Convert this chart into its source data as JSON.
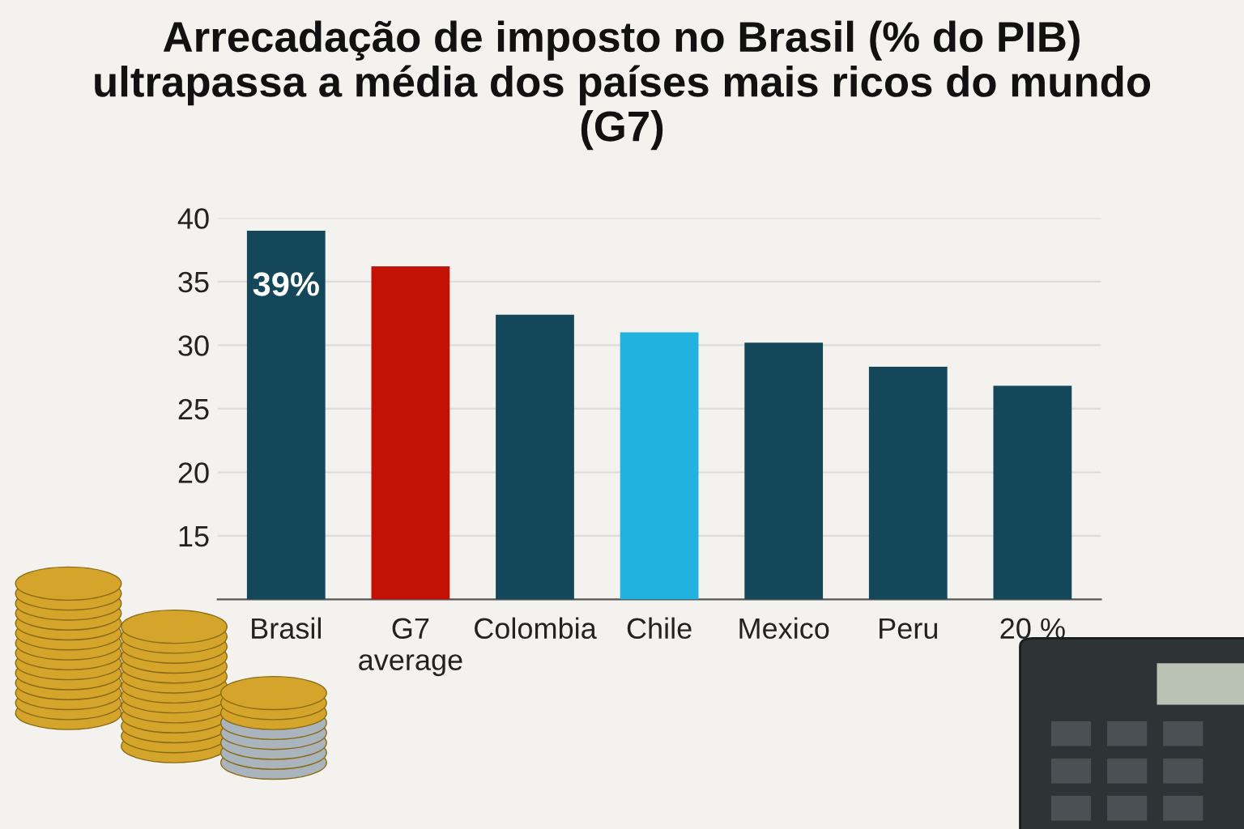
{
  "chart_data": {
    "type": "bar",
    "title": "Arrecadação de imposto no Brasil (% do PIB)\nultrapassa a média dos países mais ricos do mundo\n(G7)",
    "categories": [
      "Brasil",
      "G7\naverage",
      "Colombia",
      "Chile",
      "Mexico",
      "Peru",
      "20 %"
    ],
    "values": [
      39.0,
      36.2,
      32.4,
      31.0,
      30.2,
      28.3,
      26.8
    ],
    "colors": [
      "#14475a",
      "#c31106",
      "#14475a",
      "#22b2e0",
      "#14475a",
      "#14475a",
      "#14475a"
    ],
    "value_labels": [
      "39%",
      null,
      null,
      null,
      null,
      null,
      null
    ],
    "ylim": [
      10,
      40
    ],
    "yticks": [
      15,
      20,
      25,
      30,
      35,
      40
    ],
    "grid": "y"
  }
}
